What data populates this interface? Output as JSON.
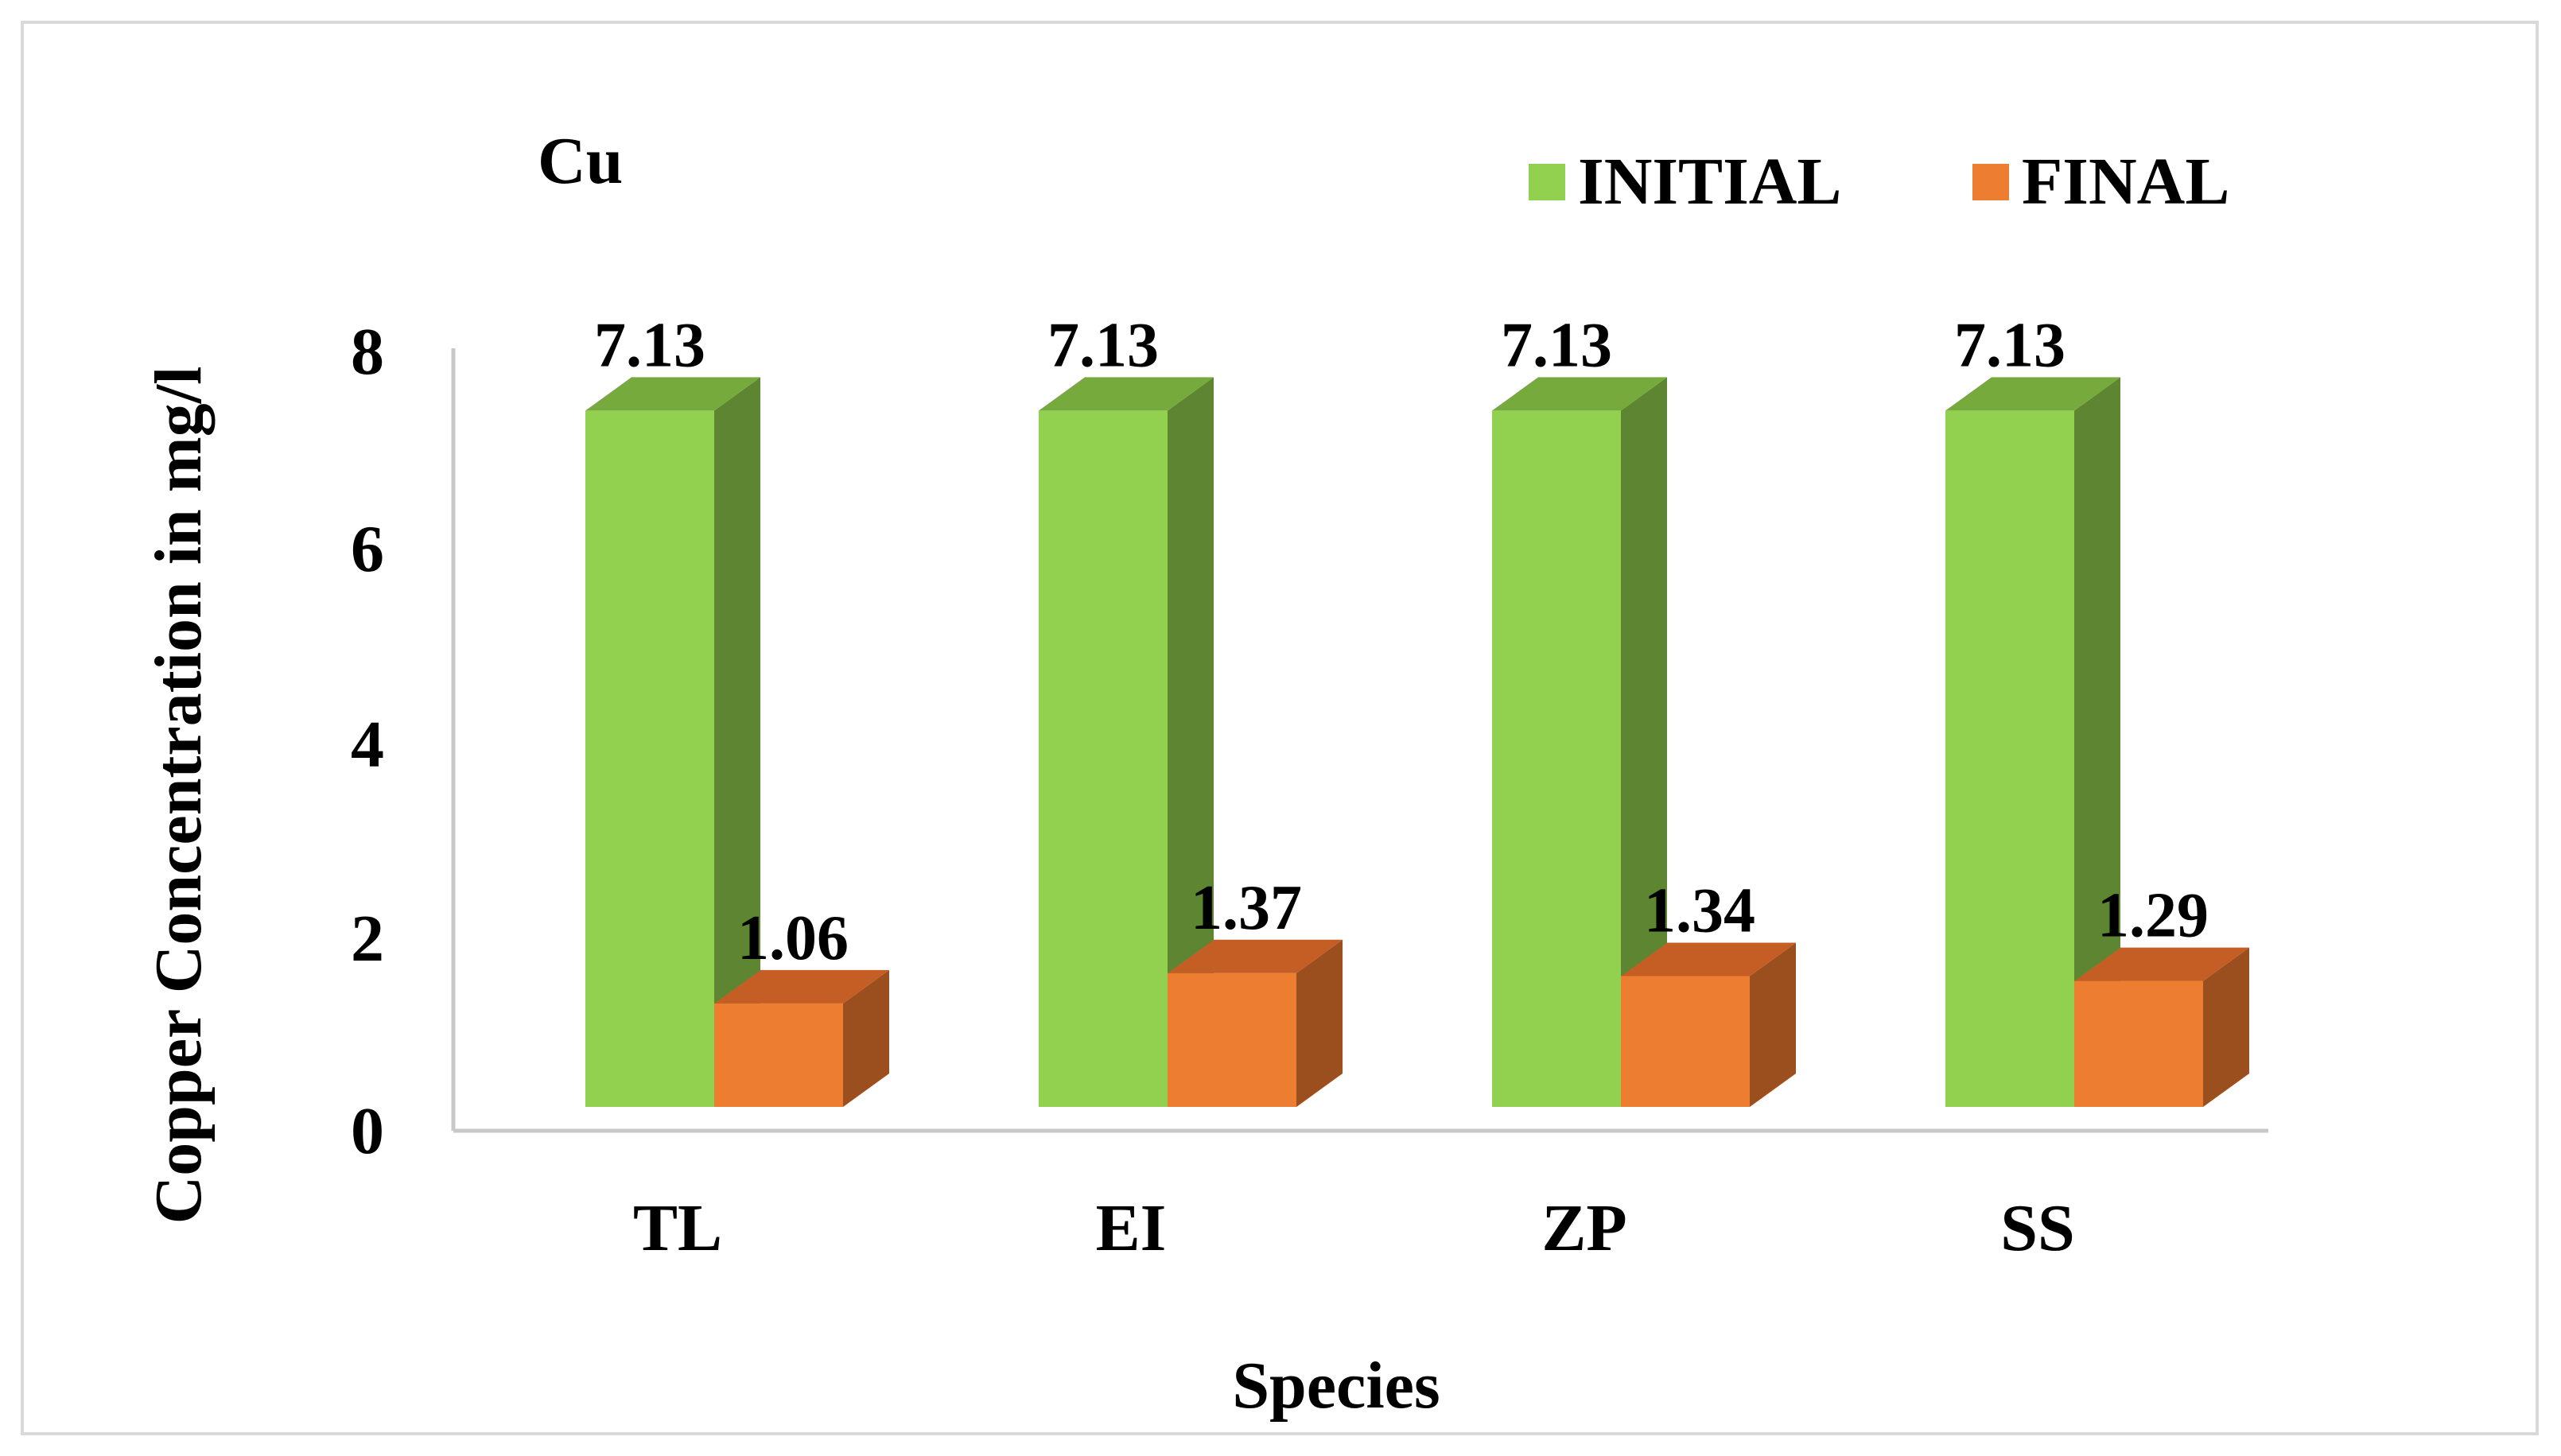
{
  "chart_data": {
    "type": "bar",
    "title": "Cu",
    "xlabel": "Species",
    "ylabel": "Copper  Concentration in mg/l",
    "categories": [
      "TL",
      "EI",
      "ZP",
      "SS"
    ],
    "series": [
      {
        "name": "INITIAL",
        "values": [
          7.13,
          7.13,
          7.13,
          7.13
        ],
        "labels": [
          "7.13",
          "7.13",
          "7.13",
          "7.13"
        ],
        "color": "#92d050",
        "side_color": "#5e8532",
        "top_color": "#77aa3c"
      },
      {
        "name": "FINAL",
        "values": [
          1.06,
          1.37,
          1.34,
          1.29
        ],
        "labels": [
          "1.06",
          "1.37",
          "1.34",
          "1.29"
        ],
        "color": "#ed7d31",
        "side_color": "#9c4f1e",
        "top_color": "#c45e24"
      }
    ],
    "ylim": [
      0,
      8
    ],
    "yticks": [
      0,
      2,
      4,
      6,
      8
    ],
    "grid": false,
    "style": "3d-clustered-column",
    "legend_position": "top-right"
  }
}
